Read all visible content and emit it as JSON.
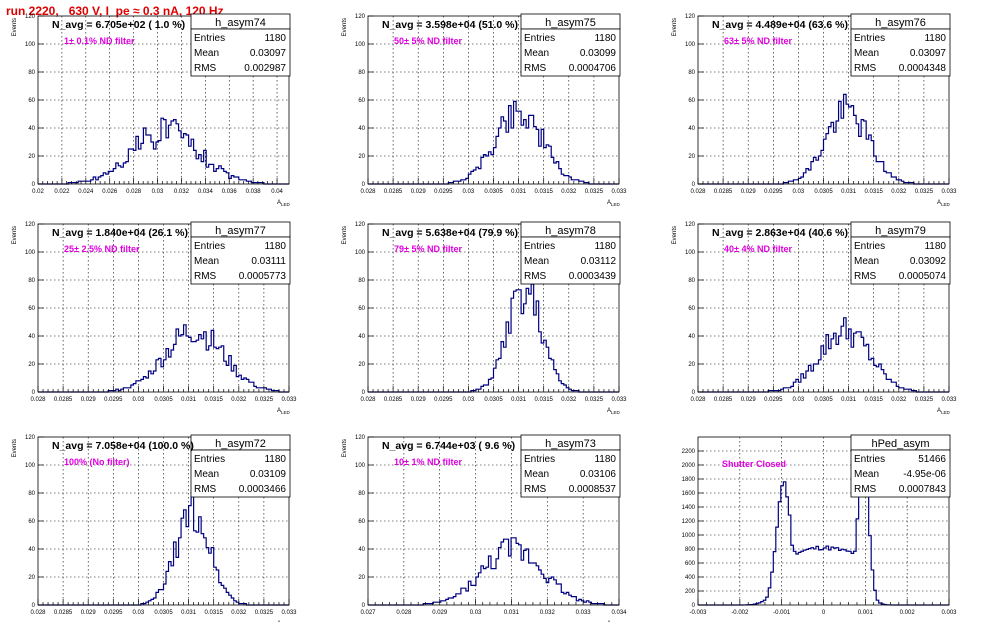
{
  "page": {
    "title": "run 2220,   630 V, I_pe ≈ 0.3 nA, 120 Hz"
  },
  "stat_labels": {
    "entries": "Entries",
    "mean": "Mean",
    "rms": "RMS"
  },
  "colors": {
    "hist": "#000080",
    "title": "#e00000",
    "annotation": "#e000e0"
  },
  "chart_data": [
    {
      "type": "bar",
      "name": "h_asym74",
      "annotation": "N_avg = 6.705e+02 ( 1.0 %)",
      "filter": "1± 0.1% ND filter",
      "entries": "1180",
      "mean": "0.03097",
      "rms": "0.002987",
      "xlabel": "A_LED",
      "ylabel": "Events",
      "xlim": [
        0.02,
        0.041
      ],
      "ylim": [
        0,
        120
      ],
      "xticks": [
        "0.02",
        "0.022",
        "0.024",
        "0.026",
        "0.028",
        "0.03",
        "0.032",
        "0.034",
        "0.036",
        "0.038",
        "0.04"
      ],
      "yticks": [
        "0",
        "20",
        "40",
        "60",
        "80",
        "100",
        "120"
      ],
      "dist": {
        "kind": "gauss",
        "mu": 0.0307,
        "sigma": 0.0028,
        "peak": 38,
        "seed": 74,
        "noise": 0.3
      }
    },
    {
      "type": "bar",
      "name": "h_asym75",
      "annotation": "N_avg = 3.598e+04 (51.0 %)",
      "filter": "50± 5% ND filter",
      "entries": "1180",
      "mean": "0.03099",
      "rms": "0.0004706",
      "xlabel": "A_LED",
      "ylabel": "Events",
      "xlim": [
        0.028,
        0.033
      ],
      "ylim": [
        0,
        120
      ],
      "xticks": [
        "0.028",
        "0.0285",
        "0.029",
        "0.0295",
        "0.03",
        "0.0305",
        "0.031",
        "0.0315",
        "0.032",
        "0.0325",
        "0.033"
      ],
      "yticks": [
        "0",
        "20",
        "40",
        "60",
        "80",
        "100",
        "120"
      ],
      "dist": {
        "kind": "gauss",
        "mu": 0.031,
        "sigma": 0.00047,
        "peak": 52,
        "seed": 75,
        "noise": 0.25
      }
    },
    {
      "type": "bar",
      "name": "h_asym76",
      "annotation": "N_avg = 4.489e+04 (63.6 %)",
      "filter": "63± 5% ND filter",
      "entries": "1180",
      "mean": "0.03097",
      "rms": "0.0004348",
      "xlabel": "A_LED",
      "ylabel": "Events",
      "xlim": [
        0.028,
        0.033
      ],
      "ylim": [
        0,
        120
      ],
      "xticks": [
        "0.028",
        "0.0285",
        "0.029",
        "0.0295",
        "0.03",
        "0.0305",
        "0.031",
        "0.0315",
        "0.032",
        "0.0325",
        "0.033"
      ],
      "yticks": [
        "0",
        "20",
        "40",
        "60",
        "80",
        "100",
        "120"
      ],
      "dist": {
        "kind": "gauss",
        "mu": 0.03097,
        "sigma": 0.00043,
        "peak": 52,
        "seed": 76,
        "noise": 0.25
      }
    },
    {
      "type": "bar",
      "name": "h_asym77",
      "annotation": "N_avg = 1.840e+04 (26.1 %)",
      "filter": "25± 2.5% ND filter",
      "entries": "1180",
      "mean": "0.03111",
      "rms": "0.0005773",
      "xlabel": "A_LED",
      "ylabel": "Events",
      "xlim": [
        0.028,
        0.033
      ],
      "ylim": [
        0,
        120
      ],
      "xticks": [
        "0.028",
        "0.0285",
        "0.029",
        "0.0295",
        "0.03",
        "0.0305",
        "0.031",
        "0.0315",
        "0.032",
        "0.0325",
        "0.033"
      ],
      "yticks": [
        "0",
        "20",
        "40",
        "60",
        "80",
        "100",
        "120"
      ],
      "dist": {
        "kind": "gauss",
        "mu": 0.03111,
        "sigma": 0.00058,
        "peak": 44,
        "seed": 77,
        "noise": 0.25
      }
    },
    {
      "type": "bar",
      "name": "h_asym78",
      "annotation": "N_avg = 5.638e+04 (79.9 %)",
      "filter": "79± 5% ND filter",
      "entries": "1180",
      "mean": "0.03112",
      "rms": "0.0003439",
      "xlabel": "A_LED",
      "ylabel": "Events",
      "xlim": [
        0.028,
        0.033
      ],
      "ylim": [
        0,
        120
      ],
      "xticks": [
        "0.028",
        "0.0285",
        "0.029",
        "0.0295",
        "0.03",
        "0.0305",
        "0.031",
        "0.0315",
        "0.032",
        "0.0325",
        "0.033"
      ],
      "yticks": [
        "0",
        "20",
        "40",
        "60",
        "80",
        "100",
        "120"
      ],
      "dist": {
        "kind": "gauss",
        "mu": 0.03112,
        "sigma": 0.00034,
        "peak": 72,
        "seed": 78,
        "noise": 0.22
      }
    },
    {
      "type": "bar",
      "name": "h_asym79",
      "annotation": "N_avg = 2.863e+04 (40.6 %)",
      "filter": "40± 4% ND filter",
      "entries": "1180",
      "mean": "0.03092",
      "rms": "0.0005074",
      "xlabel": "A_LED",
      "ylabel": "Events",
      "xlim": [
        0.028,
        0.033
      ],
      "ylim": [
        0,
        120
      ],
      "xticks": [
        "0.028",
        "0.0285",
        "0.029",
        "0.0295",
        "0.03",
        "0.0305",
        "0.031",
        "0.0315",
        "0.032",
        "0.0325",
        "0.033"
      ],
      "yticks": [
        "0",
        "20",
        "40",
        "60",
        "80",
        "100",
        "120"
      ],
      "dist": {
        "kind": "gauss",
        "mu": 0.03092,
        "sigma": 0.0005,
        "peak": 44,
        "seed": 79,
        "noise": 0.25
      }
    },
    {
      "type": "bar",
      "name": "h_asym72",
      "annotation": "N_avg = 7.058e+04 (100.0 %)",
      "filter": "100% (No filter)",
      "entries": "1180",
      "mean": "0.03109",
      "rms": "0.0003466",
      "xlabel": "A_LED",
      "ylabel": "Events",
      "xlim": [
        0.028,
        0.033
      ],
      "ylim": [
        0,
        120
      ],
      "xticks": [
        "0.028",
        "0.0285",
        "0.029",
        "0.0295",
        "0.03",
        "0.0305",
        "0.031",
        "0.0315",
        "0.032",
        "0.0325",
        "0.033"
      ],
      "yticks": [
        "0",
        "20",
        "40",
        "60",
        "80",
        "100",
        "120"
      ],
      "dist": {
        "kind": "gauss",
        "mu": 0.03109,
        "sigma": 0.00034,
        "peak": 66,
        "seed": 72,
        "noise": 0.22
      }
    },
    {
      "type": "bar",
      "name": "h_asym73",
      "annotation": "N_avg = 6.744e+03 ( 9.6 %)",
      "filter": "10± 1% ND filter",
      "entries": "1180",
      "mean": "0.03106",
      "rms": "0.0008537",
      "xlabel": "A_LED",
      "ylabel": "Events",
      "xlim": [
        0.027,
        0.034
      ],
      "ylim": [
        0,
        120
      ],
      "xticks": [
        "0.027",
        "0.028",
        "0.029",
        "0.03",
        "0.031",
        "0.032",
        "0.033",
        "0.034"
      ],
      "yticks": [
        "0",
        "20",
        "40",
        "60",
        "80",
        "100",
        "120"
      ],
      "dist": {
        "kind": "gauss",
        "mu": 0.03106,
        "sigma": 0.00085,
        "peak": 40,
        "seed": 73,
        "noise": 0.25
      }
    },
    {
      "type": "bar",
      "name": "hPed_asym",
      "annotation": "",
      "filter": "Shutter Closed",
      "entries": "51466",
      "mean": "-4.95e-06",
      "rms": "0.0007843",
      "xlabel": "",
      "ylabel": "",
      "xlim": [
        -0.003,
        0.003
      ],
      "ylim": [
        0,
        2400
      ],
      "xticks": [
        "-0.003",
        "-0.002",
        "-0.001",
        "0",
        "0.001",
        "0.002",
        "0.003"
      ],
      "yticks": [
        "0",
        "200",
        "400",
        "600",
        "800",
        "1000",
        "1200",
        "1400",
        "1600",
        "1800",
        "2000",
        "2200"
      ],
      "dist": {
        "kind": "double",
        "mu1": -0.00095,
        "s1": 0.00017,
        "a1": 1760,
        "mu2": 0.00095,
        "s2": 0.00013,
        "a2": 2150,
        "base": 780,
        "baselo": -0.0009,
        "basehi": 0.0009,
        "seed": 11,
        "noise": 0.04
      }
    }
  ]
}
